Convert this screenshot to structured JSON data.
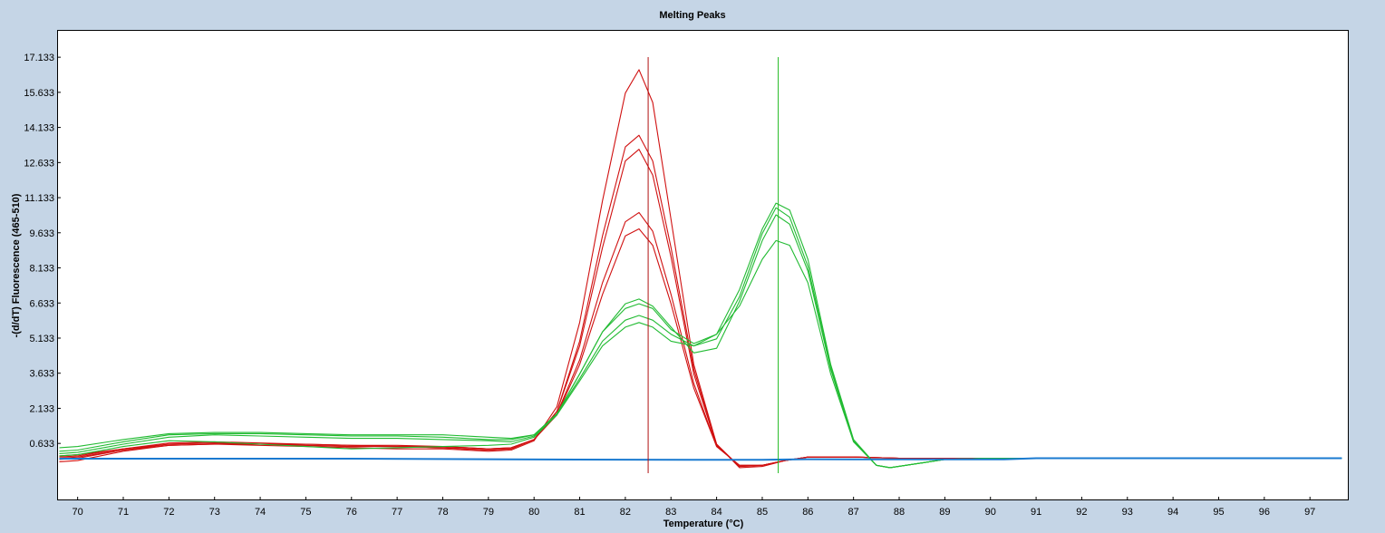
{
  "chart_data": {
    "type": "line",
    "title": "Melting Peaks",
    "xlabel": "Temperature (°C)",
    "ylabel": "-(d/dT) Fluorescence (465-510)",
    "xlim": [
      69.55,
      97.85
    ],
    "ylim": [
      -1.8,
      18.3
    ],
    "x_ticks": [
      70,
      71,
      72,
      73,
      74,
      75,
      76,
      77,
      78,
      79,
      80,
      81,
      82,
      83,
      84,
      85,
      86,
      87,
      88,
      89,
      90,
      91,
      92,
      93,
      94,
      95,
      96,
      97
    ],
    "y_ticks": [
      0.633,
      2.133,
      3.633,
      5.133,
      6.633,
      8.133,
      9.633,
      11.133,
      12.633,
      14.133,
      15.633,
      17.133
    ],
    "y_tick_labels": [
      "0.633",
      "2.133",
      "3.633",
      "5.133",
      "6.633",
      "8.133",
      "9.633",
      "11.133",
      "12.633",
      "14.133",
      "15.633",
      "17.133"
    ],
    "grid": false,
    "vertical_markers": [
      {
        "x": 82.5,
        "color": "#b01010"
      },
      {
        "x": 85.35,
        "color": "#22bb22"
      }
    ],
    "colors": {
      "red": "#d01010",
      "green": "#22bb33",
      "blue": "#1a7ad0"
    },
    "series": [
      {
        "color": "red",
        "values": [
          [
            69.6,
            -0.15
          ],
          [
            70,
            -0.1
          ],
          [
            71,
            0.3
          ],
          [
            72,
            0.55
          ],
          [
            73,
            0.6
          ],
          [
            74,
            0.55
          ],
          [
            75,
            0.5
          ],
          [
            76,
            0.45
          ],
          [
            77,
            0.4
          ],
          [
            78,
            0.4
          ],
          [
            79,
            0.3
          ],
          [
            79.5,
            0.35
          ],
          [
            80,
            0.75
          ],
          [
            80.5,
            2.2
          ],
          [
            81,
            5.8
          ],
          [
            81.5,
            11
          ],
          [
            82,
            15.6
          ],
          [
            82.3,
            16.6
          ],
          [
            82.6,
            15.2
          ],
          [
            83,
            10.2
          ],
          [
            83.5,
            4
          ],
          [
            84,
            0.6
          ],
          [
            84.5,
            -0.4
          ],
          [
            85,
            -0.35
          ],
          [
            85.5,
            -0.1
          ],
          [
            86,
            0.05
          ],
          [
            87,
            0.05
          ],
          [
            88,
            0
          ],
          [
            97.7,
            0
          ]
        ]
      },
      {
        "color": "red",
        "values": [
          [
            69.6,
            -0.05
          ],
          [
            70,
            0
          ],
          [
            71,
            0.35
          ],
          [
            72,
            0.6
          ],
          [
            73,
            0.65
          ],
          [
            74,
            0.6
          ],
          [
            75,
            0.55
          ],
          [
            76,
            0.5
          ],
          [
            77,
            0.5
          ],
          [
            78,
            0.45
          ],
          [
            79,
            0.35
          ],
          [
            79.5,
            0.4
          ],
          [
            80,
            0.8
          ],
          [
            80.5,
            2
          ],
          [
            81,
            5
          ],
          [
            81.5,
            9.5
          ],
          [
            82,
            13.3
          ],
          [
            82.3,
            13.8
          ],
          [
            82.6,
            12.7
          ],
          [
            83,
            9
          ],
          [
            83.5,
            3.8
          ],
          [
            84,
            0.6
          ],
          [
            84.5,
            -0.35
          ],
          [
            85,
            -0.3
          ],
          [
            85.5,
            -0.1
          ],
          [
            86,
            0.05
          ],
          [
            87,
            0.05
          ],
          [
            88,
            0
          ],
          [
            97.7,
            0
          ]
        ]
      },
      {
        "color": "red",
        "values": [
          [
            69.6,
            0
          ],
          [
            70,
            0.05
          ],
          [
            71,
            0.35
          ],
          [
            72,
            0.55
          ],
          [
            73,
            0.6
          ],
          [
            74,
            0.6
          ],
          [
            75,
            0.55
          ],
          [
            76,
            0.5
          ],
          [
            77,
            0.5
          ],
          [
            78,
            0.45
          ],
          [
            79,
            0.35
          ],
          [
            79.5,
            0.4
          ],
          [
            80,
            0.8
          ],
          [
            80.5,
            2
          ],
          [
            81,
            4.8
          ],
          [
            81.5,
            9
          ],
          [
            82,
            12.7
          ],
          [
            82.3,
            13.2
          ],
          [
            82.6,
            12.1
          ],
          [
            83,
            8.6
          ],
          [
            83.5,
            3.6
          ],
          [
            84,
            0.55
          ],
          [
            84.5,
            -0.35
          ],
          [
            85,
            -0.3
          ],
          [
            85.5,
            -0.1
          ],
          [
            86,
            0.05
          ],
          [
            87,
            0.05
          ],
          [
            88,
            0
          ],
          [
            97.7,
            0
          ]
        ]
      },
      {
        "color": "red",
        "values": [
          [
            69.6,
            0.05
          ],
          [
            70,
            0.1
          ],
          [
            71,
            0.4
          ],
          [
            72,
            0.6
          ],
          [
            73,
            0.65
          ],
          [
            74,
            0.6
          ],
          [
            75,
            0.6
          ],
          [
            76,
            0.55
          ],
          [
            77,
            0.5
          ],
          [
            78,
            0.5
          ],
          [
            79,
            0.4
          ],
          [
            79.5,
            0.45
          ],
          [
            80,
            0.8
          ],
          [
            80.5,
            1.9
          ],
          [
            81,
            4.2
          ],
          [
            81.5,
            7.5
          ],
          [
            82,
            10.1
          ],
          [
            82.3,
            10.5
          ],
          [
            82.6,
            9.7
          ],
          [
            83,
            7
          ],
          [
            83.5,
            3.2
          ],
          [
            84,
            0.5
          ],
          [
            84.5,
            -0.3
          ],
          [
            85,
            -0.3
          ],
          [
            85.5,
            -0.1
          ],
          [
            86,
            0.05
          ],
          [
            87,
            0.05
          ],
          [
            88,
            0
          ],
          [
            97.7,
            0
          ]
        ]
      },
      {
        "color": "red",
        "values": [
          [
            69.6,
            0.1
          ],
          [
            70,
            0.15
          ],
          [
            71,
            0.4
          ],
          [
            72,
            0.65
          ],
          [
            73,
            0.7
          ],
          [
            74,
            0.65
          ],
          [
            75,
            0.6
          ],
          [
            76,
            0.55
          ],
          [
            77,
            0.55
          ],
          [
            78,
            0.5
          ],
          [
            79,
            0.4
          ],
          [
            79.5,
            0.45
          ],
          [
            80,
            0.8
          ],
          [
            80.5,
            1.85
          ],
          [
            81,
            4
          ],
          [
            81.5,
            7
          ],
          [
            82,
            9.5
          ],
          [
            82.3,
            9.8
          ],
          [
            82.6,
            9.1
          ],
          [
            83,
            6.6
          ],
          [
            83.5,
            3
          ],
          [
            84,
            0.5
          ],
          [
            84.5,
            -0.3
          ],
          [
            85,
            -0.3
          ],
          [
            85.5,
            -0.1
          ],
          [
            86,
            0.05
          ],
          [
            87,
            0.05
          ],
          [
            88,
            0
          ],
          [
            97.7,
            0
          ]
        ]
      },
      {
        "color": "green",
        "values": [
          [
            69.6,
            0.45
          ],
          [
            70,
            0.5
          ],
          [
            71,
            0.8
          ],
          [
            72,
            1.05
          ],
          [
            73,
            1.1
          ],
          [
            74,
            1.1
          ],
          [
            75,
            1.05
          ],
          [
            76,
            1
          ],
          [
            77,
            1
          ],
          [
            78,
            1
          ],
          [
            79,
            0.9
          ],
          [
            79.5,
            0.85
          ],
          [
            80,
            1
          ],
          [
            80.5,
            1.9
          ],
          [
            81,
            3.6
          ],
          [
            81.5,
            5.4
          ],
          [
            82,
            6.4
          ],
          [
            82.3,
            6.6
          ],
          [
            82.6,
            6.4
          ],
          [
            83,
            5.5
          ],
          [
            83.5,
            4.9
          ],
          [
            84,
            5.3
          ],
          [
            84.5,
            7.2
          ],
          [
            85,
            9.8
          ],
          [
            85.3,
            10.9
          ],
          [
            85.6,
            10.6
          ],
          [
            86,
            8.5
          ],
          [
            86.5,
            4
          ],
          [
            87,
            0.8
          ],
          [
            87.5,
            -0.3
          ],
          [
            87.8,
            -0.4
          ],
          [
            88.5,
            -0.2
          ],
          [
            89,
            -0.05
          ],
          [
            90,
            0
          ],
          [
            97.7,
            0
          ]
        ]
      },
      {
        "color": "green",
        "values": [
          [
            69.6,
            0.3
          ],
          [
            70,
            0.35
          ],
          [
            71,
            0.7
          ],
          [
            72,
            1
          ],
          [
            73,
            1.05
          ],
          [
            74,
            1.05
          ],
          [
            75,
            1
          ],
          [
            76,
            0.95
          ],
          [
            77,
            0.95
          ],
          [
            78,
            0.9
          ],
          [
            79,
            0.8
          ],
          [
            79.5,
            0.8
          ],
          [
            80,
            1
          ],
          [
            80.5,
            1.9
          ],
          [
            81,
            3.6
          ],
          [
            81.5,
            5.4
          ],
          [
            82,
            6.6
          ],
          [
            82.3,
            6.8
          ],
          [
            82.6,
            6.5
          ],
          [
            83,
            5.6
          ],
          [
            83.5,
            4.5
          ],
          [
            84,
            4.7
          ],
          [
            84.5,
            6.7
          ],
          [
            85,
            9.3
          ],
          [
            85.3,
            10.4
          ],
          [
            85.6,
            10
          ],
          [
            86,
            8
          ],
          [
            86.5,
            3.8
          ],
          [
            87,
            0.7
          ],
          [
            87.5,
            -0.3
          ],
          [
            87.8,
            -0.4
          ],
          [
            88.5,
            -0.2
          ],
          [
            89,
            -0.05
          ],
          [
            90,
            0
          ],
          [
            97.7,
            0
          ]
        ]
      },
      {
        "color": "green",
        "values": [
          [
            69.6,
            0.2
          ],
          [
            70,
            0.25
          ],
          [
            71,
            0.6
          ],
          [
            72,
            0.9
          ],
          [
            73,
            1
          ],
          [
            74,
            0.95
          ],
          [
            75,
            0.9
          ],
          [
            76,
            0.85
          ],
          [
            77,
            0.85
          ],
          [
            78,
            0.8
          ],
          [
            79,
            0.75
          ],
          [
            79.5,
            0.7
          ],
          [
            80,
            0.95
          ],
          [
            80.5,
            1.9
          ],
          [
            81,
            3.4
          ],
          [
            81.5,
            5
          ],
          [
            82,
            5.9
          ],
          [
            82.3,
            6.1
          ],
          [
            82.6,
            5.9
          ],
          [
            83,
            5.3
          ],
          [
            83.5,
            4.8
          ],
          [
            84,
            5.1
          ],
          [
            84.5,
            6.9
          ],
          [
            85,
            9.6
          ],
          [
            85.3,
            10.7
          ],
          [
            85.6,
            10.3
          ],
          [
            86,
            8.2
          ],
          [
            86.5,
            3.9
          ],
          [
            87,
            0.75
          ],
          [
            87.5,
            -0.3
          ],
          [
            87.8,
            -0.4
          ],
          [
            88.5,
            -0.2
          ],
          [
            89,
            -0.05
          ],
          [
            90,
            0
          ],
          [
            97.7,
            0
          ]
        ]
      },
      {
        "color": "green",
        "values": [
          [
            69.6,
            0.1
          ],
          [
            70,
            0.15
          ],
          [
            71,
            0.5
          ],
          [
            72,
            0.75
          ],
          [
            73,
            0.7
          ],
          [
            74,
            0.6
          ],
          [
            75,
            0.5
          ],
          [
            76,
            0.4
          ],
          [
            77,
            0.45
          ],
          [
            78,
            0.5
          ],
          [
            79,
            0.55
          ],
          [
            79.5,
            0.6
          ],
          [
            80,
            0.9
          ],
          [
            80.5,
            1.85
          ],
          [
            81,
            3.3
          ],
          [
            81.5,
            4.8
          ],
          [
            82,
            5.6
          ],
          [
            82.3,
            5.8
          ],
          [
            82.6,
            5.6
          ],
          [
            83,
            5
          ],
          [
            83.5,
            4.8
          ],
          [
            84,
            5.3
          ],
          [
            84.5,
            6.5
          ],
          [
            85,
            8.5
          ],
          [
            85.3,
            9.3
          ],
          [
            85.6,
            9.1
          ],
          [
            86,
            7.5
          ],
          [
            86.5,
            3.6
          ],
          [
            87,
            0.7
          ],
          [
            87.5,
            -0.3
          ],
          [
            87.8,
            -0.4
          ],
          [
            88.5,
            -0.2
          ],
          [
            89,
            -0.05
          ],
          [
            90,
            0
          ],
          [
            97.7,
            0
          ]
        ]
      },
      {
        "color": "blue",
        "values": [
          [
            69.6,
            -0.02
          ],
          [
            76,
            -0.02
          ],
          [
            79.5,
            -0.05
          ],
          [
            82,
            -0.06
          ],
          [
            85,
            -0.07
          ],
          [
            86,
            -0.04
          ],
          [
            87,
            -0.05
          ],
          [
            90.3,
            -0.05
          ],
          [
            91,
            0
          ],
          [
            97.7,
            0
          ]
        ]
      }
    ]
  }
}
